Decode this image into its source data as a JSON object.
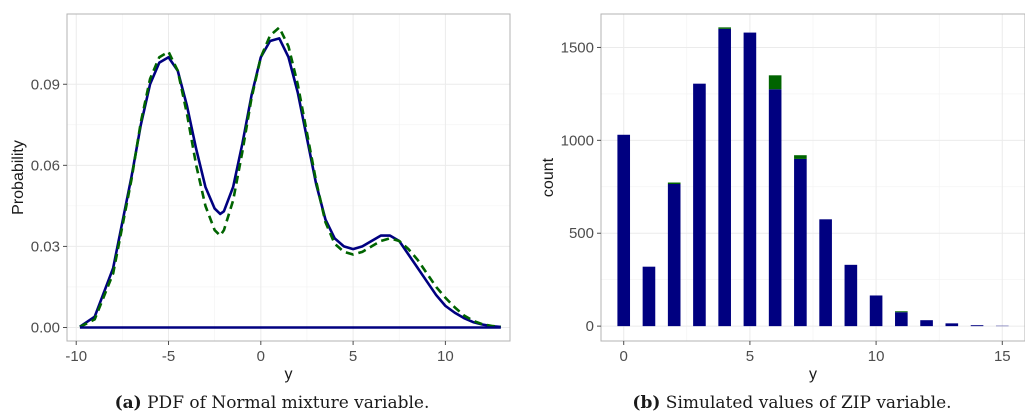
{
  "chart_data": [
    {
      "type": "line",
      "caption_label": "(a)",
      "caption_text": " PDF of Normal mixture variable.",
      "xlabel": "y",
      "ylabel": "Probability",
      "xlim": [
        -10.5,
        13.5
      ],
      "ylim": [
        -0.005,
        0.116
      ],
      "x_ticks": [
        -10,
        -5,
        0,
        5,
        10
      ],
      "x_tick_labels": [
        "-10",
        "-5",
        "0",
        "5",
        "10"
      ],
      "y_ticks": [
        0.0,
        0.03,
        0.06,
        0.09
      ],
      "y_tick_labels": [
        "0.00",
        "0.03",
        "0.06",
        "0.09"
      ],
      "grid": true,
      "series": [
        {
          "color": "#000080",
          "dash": "solid",
          "x": [
            -9.8,
            -9,
            -8,
            -7,
            -6.5,
            -6,
            -5.5,
            -5,
            -4.5,
            -4,
            -3.5,
            -3,
            -2.5,
            -2.2,
            -2,
            -1.5,
            -1,
            -0.5,
            0,
            0.5,
            1,
            1.5,
            2,
            2.5,
            3,
            3.5,
            4,
            4.5,
            5,
            5.5,
            6,
            6.5,
            7,
            7.5,
            8,
            8.5,
            9,
            9.5,
            10,
            10.5,
            11,
            11.5,
            12,
            12.5,
            13
          ],
          "y": [
            0.0003,
            0.004,
            0.022,
            0.056,
            0.075,
            0.09,
            0.098,
            0.1,
            0.095,
            0.082,
            0.066,
            0.052,
            0.044,
            0.042,
            0.043,
            0.052,
            0.068,
            0.086,
            0.1,
            0.106,
            0.107,
            0.1,
            0.087,
            0.07,
            0.053,
            0.04,
            0.033,
            0.03,
            0.029,
            0.03,
            0.032,
            0.034,
            0.034,
            0.032,
            0.027,
            0.022,
            0.017,
            0.012,
            0.008,
            0.0055,
            0.0035,
            0.002,
            0.0011,
            0.0005,
            0.0002
          ]
        },
        {
          "color": "#006400",
          "dash": "dashed",
          "x": [
            -9.8,
            -9,
            -8,
            -7,
            -6.5,
            -6,
            -5.5,
            -5,
            -4.5,
            -4,
            -3.5,
            -3,
            -2.5,
            -2.2,
            -2,
            -1.5,
            -1,
            -0.5,
            0,
            0.5,
            1,
            1.5,
            2,
            2.5,
            3,
            3.5,
            4,
            4.5,
            5,
            5.5,
            6,
            6.5,
            7,
            7.5,
            8,
            8.5,
            9,
            9.5,
            10,
            10.5,
            11,
            11.5,
            12,
            12.5,
            13
          ],
          "y": [
            0.0002,
            0.003,
            0.02,
            0.055,
            0.076,
            0.092,
            0.1,
            0.102,
            0.095,
            0.079,
            0.06,
            0.045,
            0.036,
            0.034,
            0.036,
            0.047,
            0.065,
            0.085,
            0.1,
            0.108,
            0.111,
            0.104,
            0.09,
            0.072,
            0.054,
            0.039,
            0.031,
            0.028,
            0.027,
            0.028,
            0.03,
            0.032,
            0.033,
            0.032,
            0.029,
            0.025,
            0.02,
            0.015,
            0.011,
            0.0075,
            0.0045,
            0.0025,
            0.0012,
            0.0006,
            0.0002
          ]
        },
        {
          "color": "#000080",
          "dash": "solid",
          "x": [
            -9.8,
            13
          ],
          "y": [
            0,
            0
          ]
        }
      ]
    },
    {
      "type": "bar",
      "caption_label": "(b)",
      "caption_text": " Simulated values of ZIP variable.",
      "xlabel": "y",
      "ylabel": "count",
      "xlim": [
        -0.9,
        15.9
      ],
      "ylim": [
        -80,
        1680
      ],
      "x_ticks": [
        0,
        5,
        10,
        15
      ],
      "x_tick_labels": [
        "0",
        "5",
        "10",
        "15"
      ],
      "y_ticks": [
        0,
        500,
        1000,
        1500
      ],
      "y_tick_labels": [
        "0",
        "500",
        "1000",
        "1500"
      ],
      "grid": true,
      "bar_width": 0.5,
      "stack_colors": [
        "#000080",
        "#006400"
      ],
      "x": [
        0,
        1,
        2,
        3,
        4,
        5,
        6,
        7,
        8,
        9,
        10,
        11,
        12,
        13,
        14,
        15
      ],
      "series": [
        {
          "values": [
            1030,
            320,
            765,
            1305,
            1600,
            1580,
            1275,
            900,
            575,
            330,
            165,
            75,
            32,
            15,
            5,
            2
          ]
        },
        {
          "values": [
            0,
            0,
            8,
            0,
            8,
            0,
            75,
            20,
            0,
            0,
            0,
            5,
            0,
            0,
            0,
            0
          ]
        }
      ]
    }
  ]
}
